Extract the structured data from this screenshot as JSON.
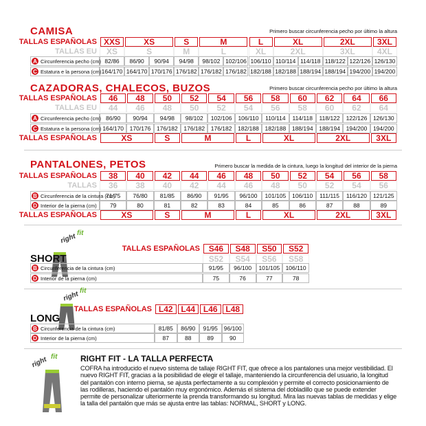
{
  "sections": [
    {
      "title": "CAMISA",
      "note": "Primero buscar circunferencia pecho por último la altura",
      "rows": [
        {
          "label": "TALLAS ESPAÑOLAS",
          "values": [
            "XXS",
            "XS",
            "S",
            "M",
            "L",
            "XL",
            "2XL",
            "3XL"
          ]
        },
        {
          "label": "TALLAS EU",
          "values": [
            "XS",
            "S",
            "M",
            "L",
            "XL",
            "2XL",
            "3XL",
            "4XL"
          ]
        },
        {
          "marker": "A",
          "label": "Circunferencia pecho (cm)",
          "values": [
            "82/86",
            "86/90",
            "90/94",
            "94/98",
            "98/102",
            "102/106",
            "106/110",
            "110/114",
            "114/118",
            "118/122",
            "122/126",
            "126/130"
          ]
        },
        {
          "marker": "C",
          "label": "Estatura e la persona (cm)",
          "values": [
            "164/170",
            "164/170",
            "170/176",
            "176/182",
            "176/182",
            "176/182",
            "182/188",
            "182/188",
            "188/194",
            "188/194",
            "194/200",
            "194/200"
          ]
        }
      ]
    },
    {
      "title": "CAZADORAS, CHALECOS, BUZOS",
      "note": "Primero buscar circunferencia pecho por último la altura",
      "rows": [
        {
          "label": "TALLAS ESPAÑOLAS",
          "values": [
            "46",
            "48",
            "50",
            "52",
            "54",
            "56",
            "58",
            "60",
            "62",
            "64",
            "66"
          ]
        },
        {
          "label": "TALLAS EU",
          "values": [
            "44",
            "46",
            "48",
            "50",
            "52",
            "54",
            "56",
            "58",
            "60",
            "62",
            "64"
          ]
        },
        {
          "marker": "A",
          "label": "Circunferencia pecho (cm)",
          "values": [
            "86/90",
            "90/94",
            "94/98",
            "98/102",
            "102/106",
            "106/110",
            "110/114",
            "114/118",
            "118/122",
            "122/126",
            "126/130"
          ]
        },
        {
          "marker": "C",
          "label": "Estatura e la persona (cm)",
          "values": [
            "164/170",
            "170/176",
            "176/182",
            "176/182",
            "176/182",
            "182/188",
            "182/188",
            "188/194",
            "188/194",
            "194/200",
            "194/200"
          ]
        },
        {
          "label": "TALLAS ESPAÑOLAS",
          "values": [
            "XS",
            "S",
            "M",
            "L",
            "XL",
            "2XL",
            "3XL"
          ]
        }
      ]
    },
    {
      "title": "PANTALONES, PETOS",
      "note": "Primero buscar la medida de la cintura, luego la longitud del interior de la pierna",
      "rows": [
        {
          "label": "TALLAS ESPAÑOLAS",
          "values": [
            "38",
            "40",
            "42",
            "44",
            "46",
            "48",
            "50",
            "52",
            "54",
            "56",
            "58"
          ]
        },
        {
          "label": "TALLAS",
          "values": [
            "36",
            "38",
            "40",
            "42",
            "44",
            "46",
            "48",
            "50",
            "52",
            "54",
            "56"
          ]
        },
        {
          "marker": "B",
          "label": "Circunferencia de la cintura (cm)",
          "values": [
            "71/75",
            "76/80",
            "81/85",
            "86/90",
            "91/95",
            "96/100",
            "101/105",
            "106/110",
            "111/115",
            "116/120",
            "121/125"
          ]
        },
        {
          "marker": "D",
          "label": "Interior de la pierna (cm)",
          "values": [
            "79",
            "80",
            "81",
            "82",
            "83",
            "84",
            "85",
            "86",
            "87",
            "88",
            "89"
          ]
        },
        {
          "label": "TALLAS ESPAÑOLAS",
          "values": [
            "XS",
            "S",
            "M",
            "L",
            "XL",
            "2XL",
            "3XL"
          ]
        }
      ]
    },
    {
      "title": "SHORT",
      "logo": [
        "right",
        "fit"
      ],
      "rows": [
        {
          "label": "TALLAS ESPAÑOLAS",
          "values": [
            "S46",
            "S48",
            "S50",
            "S52"
          ]
        },
        {
          "values": [
            "S52",
            "S54",
            "S56",
            "S58"
          ]
        },
        {
          "marker": "B",
          "label": "Circunferencia de la cintura (cm)",
          "values": [
            "91/95",
            "96/100",
            "101/105",
            "106/110"
          ]
        },
        {
          "marker": "D",
          "label": "Interior de la pierna (cm)",
          "values": [
            "75",
            "76",
            "77",
            "78"
          ]
        }
      ]
    },
    {
      "title": "LONG",
      "logo": [
        "right",
        "fit"
      ],
      "rows": [
        {
          "label": "TALLAS ESPAÑOLAS",
          "values": [
            "L42",
            "L44",
            "L46",
            "L48"
          ]
        },
        {
          "marker": "B",
          "label": "Circunferencia de la cintura (cm)",
          "values": [
            "81/85",
            "86/90",
            "91/95",
            "96/100"
          ]
        },
        {
          "marker": "D",
          "label": "Interior de la pierna (cm)",
          "values": [
            "87",
            "88",
            "89",
            "90"
          ]
        }
      ]
    }
  ],
  "rightfit": {
    "logo": [
      "right",
      "fit"
    ],
    "title": "RIGHT FIT - LA TALLA PERFECTA",
    "text": "COFRA ha introducido el nuevo sistema de tallaje RIGHT FIT, que ofrece a los pantalones una mejor vestibilidad. El nuevo RIGHT FIT, gracias a la posibilidad de elegir el tallaje, manteniendo la circunferencia del usuario, la longitud del pantalón con interno pierna, se ajusta perfectamente a su complexión y permite el correcto posicionamiento de las rodilleras, haciendo el pantalón muy ergonómico. Además el sistema del dobladillo que se puede extender permite de personalizar ulteriormente la prenda transformando su longitud. Mira las nuevas tablas de medidas y elige la talla del pantalón que más se ajusta entre las tablas: NORMAL, SHORT y LONG."
  }
}
